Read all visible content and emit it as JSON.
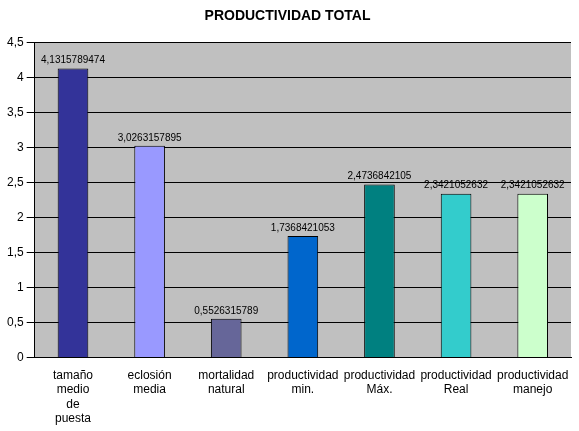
{
  "chart_data": {
    "type": "bar",
    "title": "PRODUCTIVIDAD TOTAL",
    "categories": [
      "tamaño medio de puesta",
      "eclosión media",
      "mortalidad natural",
      "productividad min.",
      "productividad Máx.",
      "productividad Real",
      "productividad manejo"
    ],
    "values": [
      4.1315789474,
      3.0263157895,
      0.5526315789,
      1.7368421053,
      2.4736842105,
      2.3421052632,
      2.3421052632
    ],
    "value_labels": [
      "4,1315789474",
      "3,0263157895",
      "0,5526315789",
      "1,7368421053",
      "2,4736842105",
      "2,3421052632",
      "2,3421052632"
    ],
    "data_labels": true,
    "colors": [
      "#333399",
      "#9999ff",
      "#666699",
      "#0066cc",
      "#008080",
      "#33cccc",
      "#ccffcc"
    ],
    "ylim": [
      0,
      4.5
    ],
    "yticks": [
      0,
      {
        "value": 0.5,
        "label": "0,5"
      },
      1,
      {
        "value": 1.5,
        "label": "1,5"
      },
      2,
      {
        "value": 2.5,
        "label": "2,5"
      },
      3,
      {
        "value": 3.5,
        "label": "3,5"
      },
      4,
      {
        "value": 4.5,
        "label": "4,5"
      }
    ],
    "grid": true
  }
}
